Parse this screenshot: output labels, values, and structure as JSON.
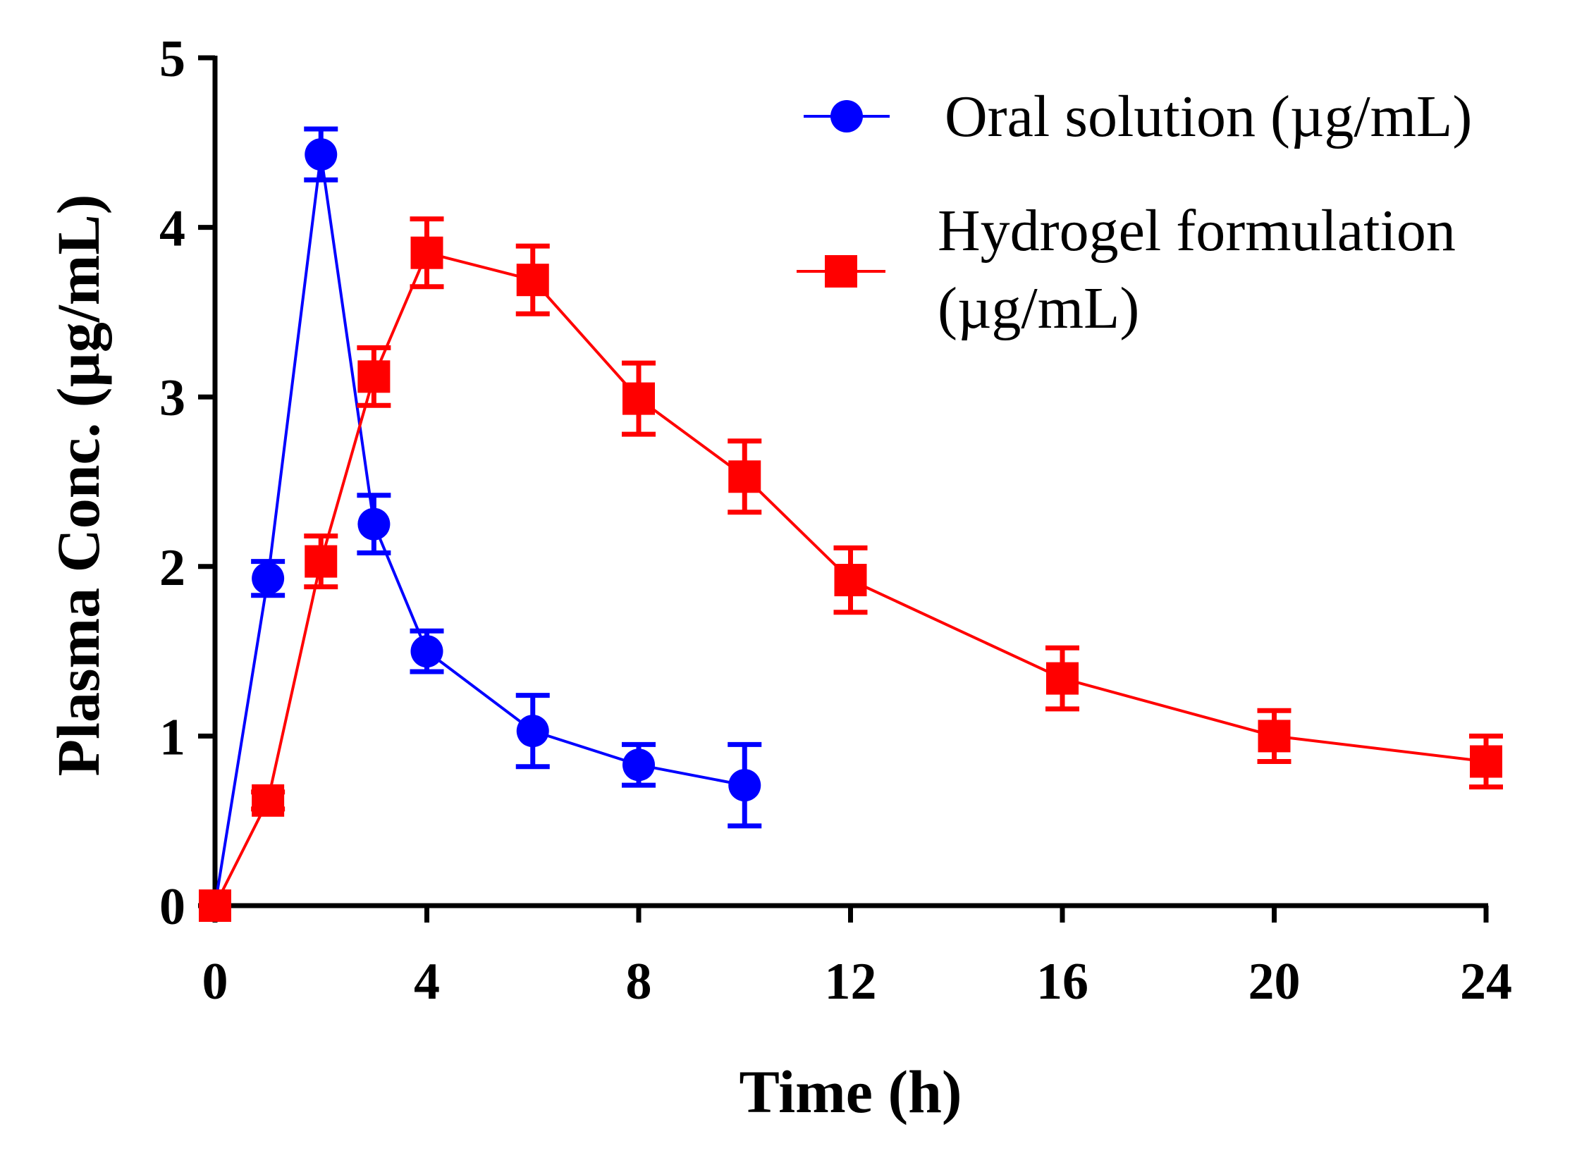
{
  "chart_data": {
    "type": "line",
    "title": "",
    "xlabel": "Time (h)",
    "ylabel": "Plasma Conc. (µg/mL)",
    "xlim": [
      0,
      24
    ],
    "ylim": [
      0,
      5
    ],
    "xticks": [
      0,
      4,
      8,
      12,
      16,
      20,
      24
    ],
    "yticks": [
      0,
      1,
      2,
      3,
      4,
      5
    ],
    "xtick_labels": [
      "0",
      "4",
      "8",
      "12",
      "16",
      "20",
      "24"
    ],
    "ytick_labels": [
      "0",
      "1",
      "2",
      "3",
      "4",
      "5"
    ],
    "grid": false,
    "legend_position": "top-right",
    "series": [
      {
        "name": "Oral solution (µg/mL)",
        "legend_lines": [
          "Oral solution (µg/mL)"
        ],
        "color": "#0000ff",
        "marker": "circle",
        "x": [
          0,
          1,
          2,
          3,
          4,
          6,
          8,
          10
        ],
        "y": [
          0,
          1.93,
          4.43,
          2.25,
          1.5,
          1.03,
          0.83,
          0.71
        ],
        "error": [
          0.02,
          0.1,
          0.15,
          0.17,
          0.12,
          0.21,
          0.12,
          0.24
        ]
      },
      {
        "name": "Hydrogel formulation (µg/mL)",
        "legend_lines": [
          "Hydrogel formulation",
          "(µg/mL)"
        ],
        "color": "#ff0000",
        "marker": "square",
        "x": [
          0,
          1,
          2,
          3,
          4,
          6,
          8,
          10,
          12,
          16,
          20,
          24
        ],
        "y": [
          0,
          0.62,
          2.03,
          3.12,
          3.85,
          3.69,
          2.99,
          2.53,
          1.92,
          1.34,
          1.0,
          0.85
        ],
        "error": [
          0.02,
          0.05,
          0.15,
          0.17,
          0.2,
          0.2,
          0.21,
          0.21,
          0.19,
          0.18,
          0.15,
          0.15
        ]
      }
    ]
  }
}
